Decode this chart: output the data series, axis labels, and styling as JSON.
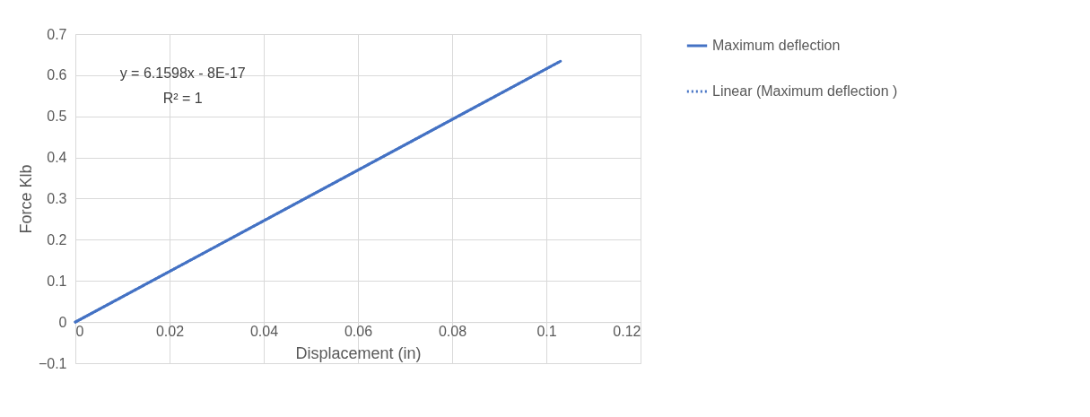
{
  "chart_data": {
    "type": "line",
    "xlabel": "Displacement (in)",
    "ylabel": "Force Klb",
    "x": [
      0,
      0.103
    ],
    "series": [
      {
        "name": "Maximum deflection",
        "color": "#4472c4",
        "values": [
          0,
          0.634
        ],
        "line_style": "solid"
      },
      {
        "name": "Linear (Maximum deflection )",
        "color": "#4472c4",
        "values": [
          0,
          0.634
        ],
        "line_style": "dotted"
      }
    ],
    "annotations": [
      "y = 6.1598x - 8E-17",
      "R² = 1"
    ],
    "xlim": [
      0,
      0.12
    ],
    "xticks": [
      0,
      0.02,
      0.04,
      0.06,
      0.08,
      0.1,
      0.12
    ],
    "ylim": [
      -0.1,
      0.7
    ],
    "yticks": [
      -0.1,
      0,
      0.1,
      0.2,
      0.3,
      0.4,
      0.5,
      0.6,
      0.7
    ],
    "grid": true,
    "legend": "right",
    "marker": "none"
  }
}
